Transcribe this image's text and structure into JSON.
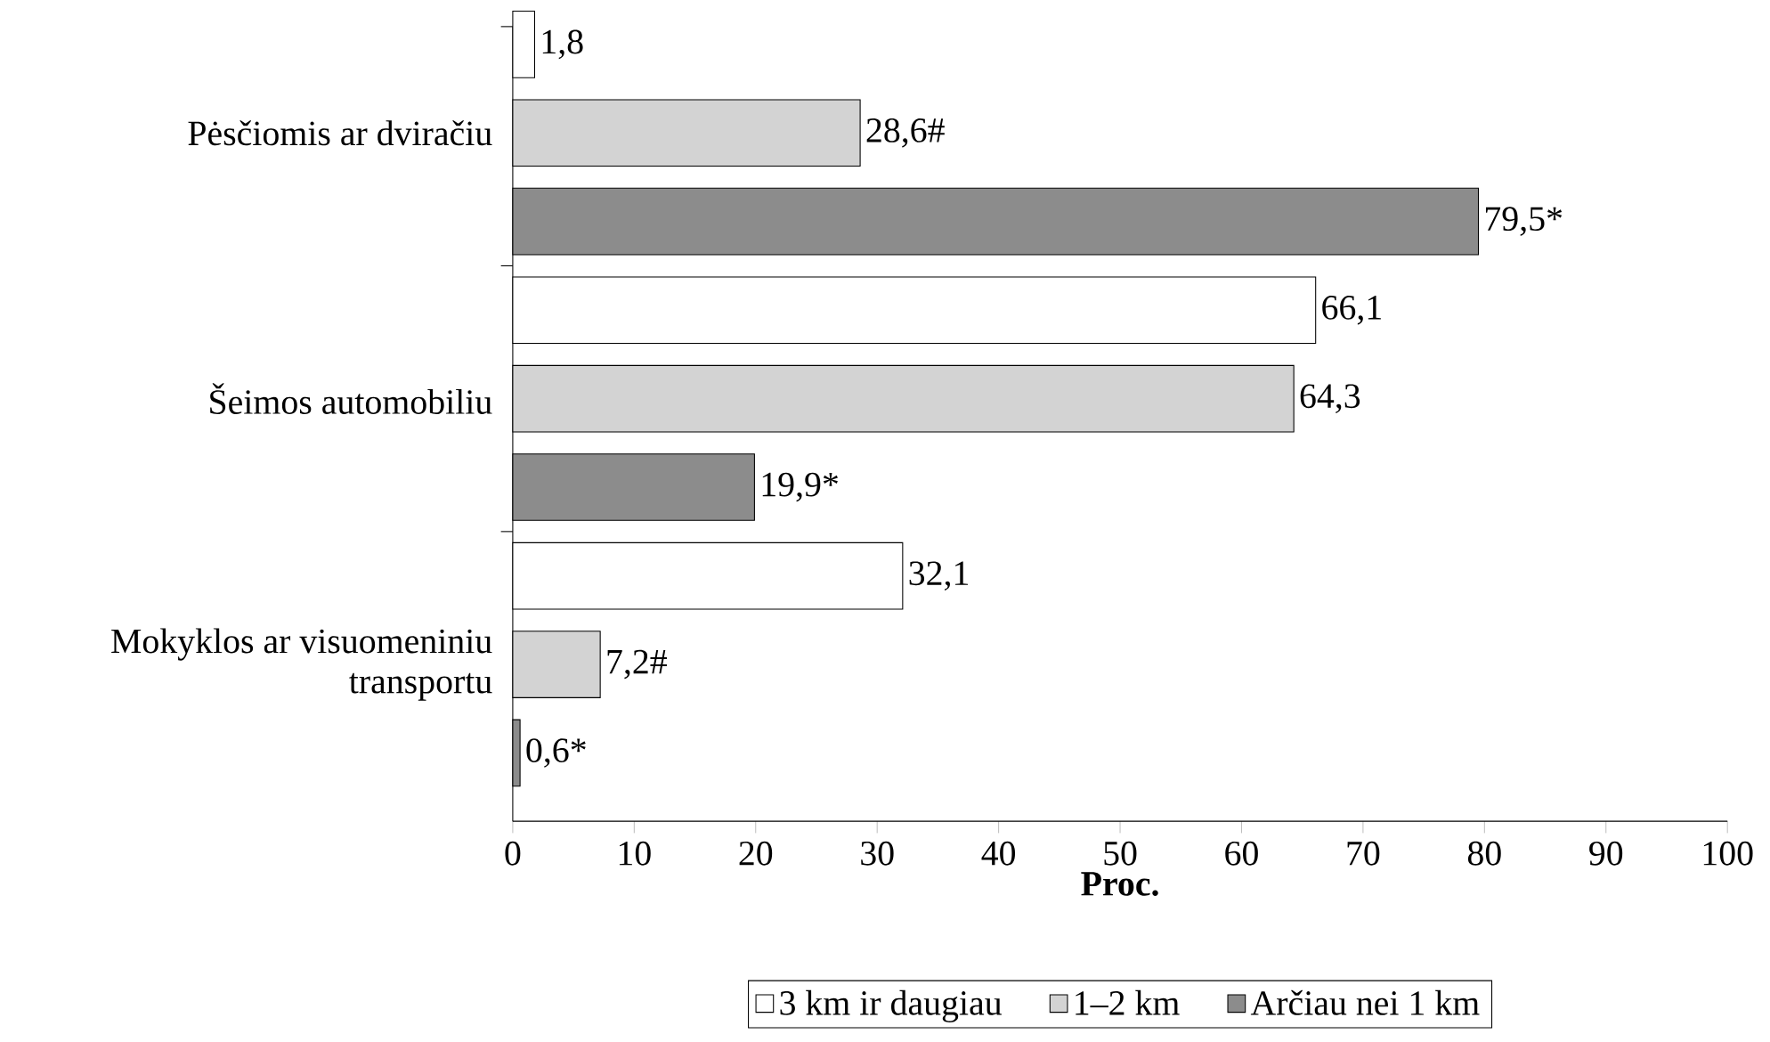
{
  "chart_data": {
    "type": "bar",
    "orientation": "horizontal",
    "xlabel": "Proc.",
    "categories": [
      "Pėsčiomis ar dviračiu",
      "Šeimos automobiliu",
      "Mokyklos ar visuomeniniu transportu"
    ],
    "series": [
      {
        "name": "3 km ir daugiau",
        "color": "#ffffff",
        "values": [
          1.8,
          66.1,
          32.1
        ],
        "value_labels": [
          "1,8",
          "66,1",
          "32,1"
        ]
      },
      {
        "name": "1–2 km",
        "color": "#d3d3d3",
        "values": [
          28.6,
          64.3,
          7.2
        ],
        "value_labels": [
          "28,6#",
          "64,3",
          "7,2#"
        ]
      },
      {
        "name": "Arčiau nei 1 km",
        "color": "#8c8c8c",
        "values": [
          79.5,
          19.9,
          0.6
        ],
        "value_labels": [
          "79,5*",
          "19,9*",
          "0,6*"
        ]
      }
    ],
    "xlim": [
      0,
      100
    ],
    "xticks": [
      0,
      10,
      20,
      30,
      40,
      50,
      60,
      70,
      80,
      90,
      100
    ],
    "legend": "bottom",
    "grid": false
  }
}
